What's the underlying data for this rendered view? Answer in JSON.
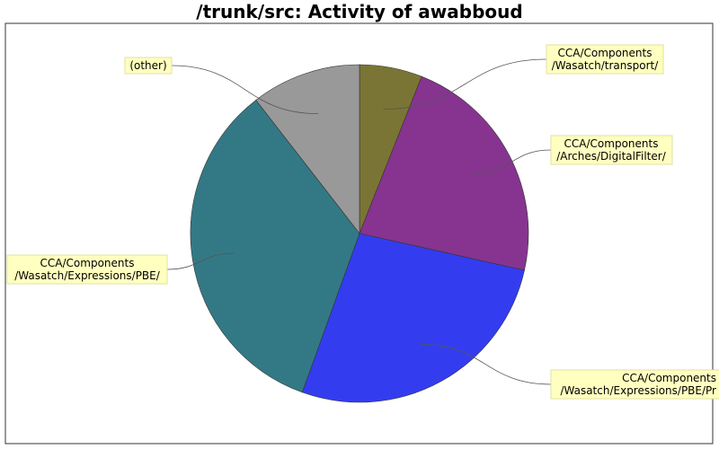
{
  "chart_data": {
    "type": "pie",
    "title": "/trunk/src: Activity of awabboud",
    "slices": [
      {
        "label_lines": [
          "CCA/Components",
          "/Wasatch/transport/"
        ],
        "value": 6,
        "color": "#7a7535"
      },
      {
        "label_lines": [
          "CCA/Components",
          "/Arches/DigitalFilter/"
        ],
        "value": 22.5,
        "color": "#863490"
      },
      {
        "label_lines": [
          "CCA/Components",
          "/Wasatch/Expressions/PBE/Pr"
        ],
        "value": 27,
        "color": "#333def"
      },
      {
        "label_lines": [
          "CCA/Components",
          "/Wasatch/Expressions/PBE/"
        ],
        "value": 34,
        "color": "#337985"
      },
      {
        "label_lines": [
          "(other)"
        ],
        "value": 10.5,
        "color": "#999999"
      }
    ]
  }
}
